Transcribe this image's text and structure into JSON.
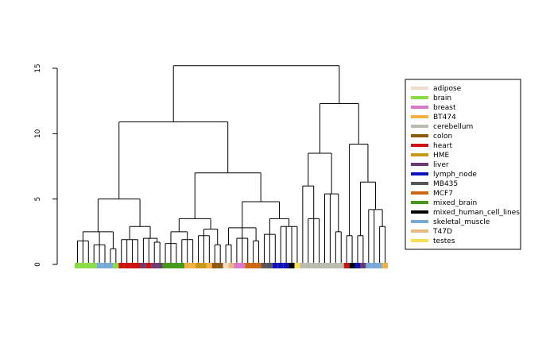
{
  "chart_data": {
    "type": "dendrogram",
    "ylim": [
      0,
      15
    ],
    "yticks": [
      0,
      5,
      10,
      15
    ],
    "legend": [
      {
        "name": "adipose",
        "color": "#f0dcc8"
      },
      {
        "name": "brain",
        "color": "#88dd44"
      },
      {
        "name": "breast",
        "color": "#dd77cc"
      },
      {
        "name": "BT474",
        "color": "#f4b040"
      },
      {
        "name": "cerebellum",
        "color": "#bbbbb0"
      },
      {
        "name": "colon",
        "color": "#8b5a10"
      },
      {
        "name": "heart",
        "color": "#cc1111"
      },
      {
        "name": "HME",
        "color": "#c89818"
      },
      {
        "name": "liver",
        "color": "#6a3a70"
      },
      {
        "name": "lymph_node",
        "color": "#1111bb"
      },
      {
        "name": "MB435",
        "color": "#555555"
      },
      {
        "name": "MCF7",
        "color": "#cc6611"
      },
      {
        "name": "mixed_brain",
        "color": "#44991a"
      },
      {
        "name": "mixed_human_cell_lines",
        "color": "#000000"
      },
      {
        "name": "skeletal_muscle",
        "color": "#77aad8"
      },
      {
        "name": "T47D",
        "color": "#e8b880"
      },
      {
        "name": "testes",
        "color": "#f8e050"
      }
    ],
    "tree": {
      "h": 15.2,
      "c": [
        {
          "h": 10.9,
          "c": [
            {
              "h": 5.0,
              "c": [
                {
                  "h": 2.5,
                  "c": [
                    {
                      "h": 1.8,
                      "c": [
                        {
                          "g": 1
                        },
                        {
                          "g": 1
                        },
                        {
                          "g": 1
                        }
                      ]
                    },
                    {
                      "h": 1.5,
                      "c": [
                        {
                          "g": 1
                        },
                        {
                          "g": 14
                        },
                        {
                          "g": 14
                        }
                      ]
                    },
                    {
                      "h": 1.2,
                      "c": [
                        {
                          "g": 14
                        },
                        {
                          "g": 1
                        }
                      ]
                    }
                  ]
                },
                {
                  "h": 2.9,
                  "c": [
                    {
                      "h": 1.9,
                      "c": [
                        {
                          "g": 6
                        },
                        {
                          "g": 6
                        },
                        {
                          "g": 6
                        },
                        {
                          "g": 6
                        }
                      ]
                    },
                    {
                      "h": 2.0,
                      "c": [
                        {
                          "g": 8
                        },
                        {
                          "g": 6
                        },
                        {
                          "h": 1.7,
                          "c": [
                            {
                              "g": 8
                            },
                            {
                              "g": 8
                            }
                          ]
                        }
                      ]
                    }
                  ]
                }
              ]
            },
            {
              "h": 7.0,
              "c": [
                {
                  "h": 3.5,
                  "c": [
                    {
                      "h": 2.5,
                      "c": [
                        {
                          "h": 1.6,
                          "c": [
                            {
                              "g": 12
                            },
                            {
                              "g": 12
                            },
                            {
                              "g": 12
                            }
                          ]
                        },
                        {
                          "h": 1.9,
                          "c": [
                            {
                              "g": 12
                            },
                            {
                              "g": 3
                            },
                            {
                              "g": 3
                            }
                          ]
                        }
                      ]
                    },
                    {
                      "h": 2.7,
                      "c": [
                        {
                          "h": 2.2,
                          "c": [
                            {
                              "g": 7
                            },
                            {
                              "g": 7
                            },
                            {
                              "g": 3
                            }
                          ]
                        },
                        {
                          "h": 1.5,
                          "c": [
                            {
                              "g": 5
                            },
                            {
                              "g": 5
                            }
                          ]
                        }
                      ]
                    }
                  ]
                },
                {
                  "h": 4.8,
                  "c": [
                    {
                      "h": 2.8,
                      "c": [
                        {
                          "h": 1.5,
                          "c": [
                            {
                              "g": 0
                            },
                            {
                              "g": 15
                            }
                          ]
                        },
                        {
                          "h": 2.0,
                          "c": [
                            {
                              "g": 2
                            },
                            {
                              "g": 2
                            },
                            {
                              "g": 11
                            }
                          ]
                        },
                        {
                          "h": 1.8,
                          "c": [
                            {
                              "g": 11
                            },
                            {
                              "g": 11
                            }
                          ]
                        }
                      ]
                    },
                    {
                      "h": 3.5,
                      "c": [
                        {
                          "h": 2.3,
                          "c": [
                            {
                              "g": 10
                            },
                            {
                              "g": 10
                            },
                            {
                              "g": 9
                            }
                          ]
                        },
                        {
                          "h": 2.9,
                          "c": [
                            {
                              "g": 9
                            },
                            {
                              "g": 9
                            },
                            {
                              "g": 13
                            },
                            {
                              "g": 16
                            }
                          ]
                        }
                      ]
                    }
                  ]
                }
              ]
            }
          ]
        },
        {
          "h": 12.3,
          "c": [
            {
              "h": 8.5,
              "c": [
                {
                  "h": 6.0,
                  "c": [
                    {
                      "g": 4
                    },
                    {
                      "h": 3.5,
                      "c": [
                        {
                          "g": 4
                        },
                        {
                          "g": 4
                        },
                        {
                          "g": 4
                        }
                      ]
                    }
                  ]
                },
                {
                  "h": 5.4,
                  "c": [
                    {
                      "g": 4
                    },
                    {
                      "g": 4
                    },
                    {
                      "h": 2.5,
                      "c": [
                        {
                          "g": 4
                        },
                        {
                          "g": 4
                        }
                      ]
                    }
                  ]
                }
              ]
            },
            {
              "h": 9.2,
              "c": [
                {
                  "h": 2.2,
                  "c": [
                    {
                      "g": 6
                    },
                    {
                      "g": 13
                    }
                  ]
                },
                {
                  "h": 6.3,
                  "c": [
                    {
                      "h": 2.2,
                      "c": [
                        {
                          "g": 9
                        },
                        {
                          "g": 8
                        }
                      ]
                    },
                    {
                      "h": 4.2,
                      "c": [
                        {
                          "g": 14
                        },
                        {
                          "g": 14
                        },
                        {
                          "h": 2.9,
                          "c": [
                            {
                              "g": 14
                            },
                            {
                              "g": 3
                            }
                          ]
                        }
                      ]
                    }
                  ]
                }
              ]
            }
          ]
        }
      ]
    }
  }
}
